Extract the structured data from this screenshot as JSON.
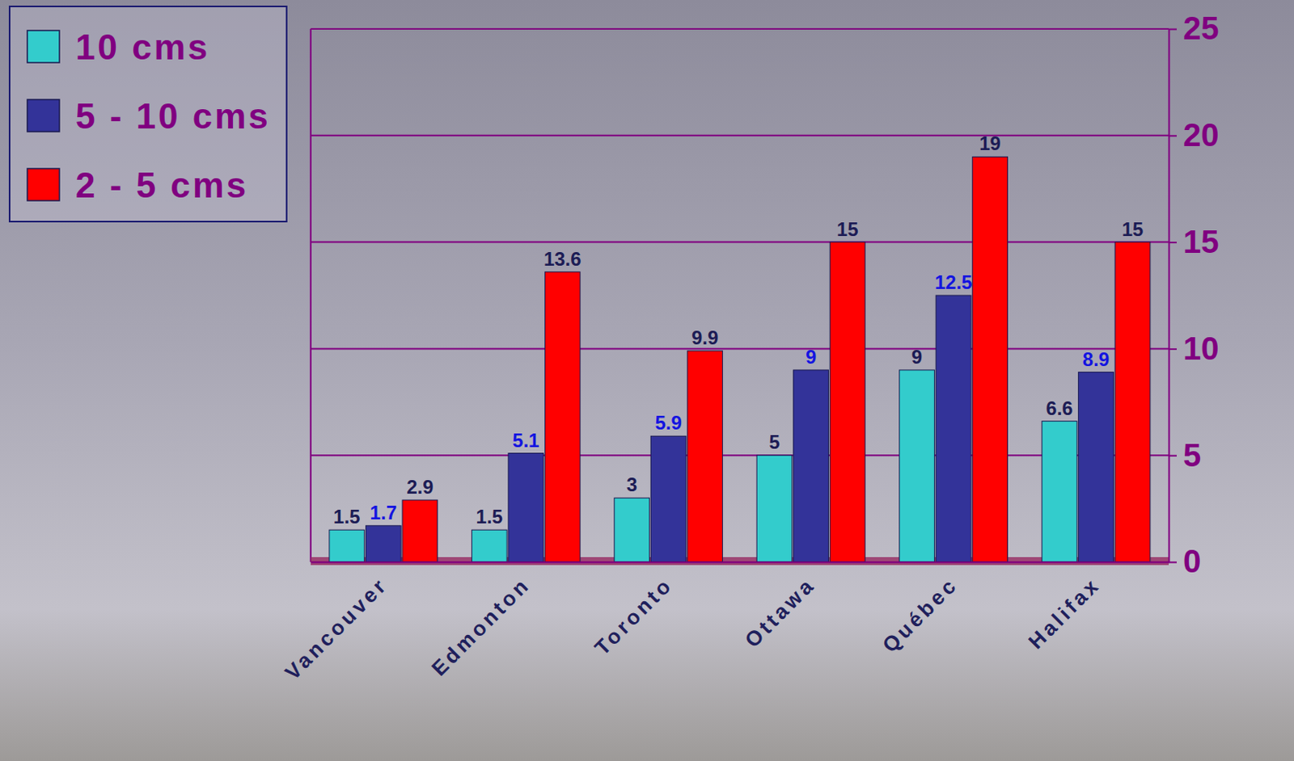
{
  "chart_data": {
    "type": "bar",
    "categories": [
      "Vancouver",
      "Edmonton",
      "Toronto",
      "Ottawa",
      "Québec",
      "Halifax"
    ],
    "series": [
      {
        "name": "10 cms",
        "color": "#33cccc",
        "values": [
          1.5,
          1.5,
          3,
          5,
          9,
          6.6
        ]
      },
      {
        "name": "5 - 10 cms",
        "color": "#333399",
        "values": [
          1.7,
          5.1,
          5.9,
          9,
          12.5,
          8.9
        ]
      },
      {
        "name": "2 - 5 cms",
        "color": "#ff0000",
        "values": [
          2.9,
          13.6,
          9.9,
          15,
          19,
          15
        ]
      }
    ],
    "ylim": [
      0,
      25
    ],
    "yticks": [
      0,
      5,
      10,
      15,
      20,
      25
    ],
    "grid": true,
    "legend": "top-left",
    "data_labels": true
  }
}
